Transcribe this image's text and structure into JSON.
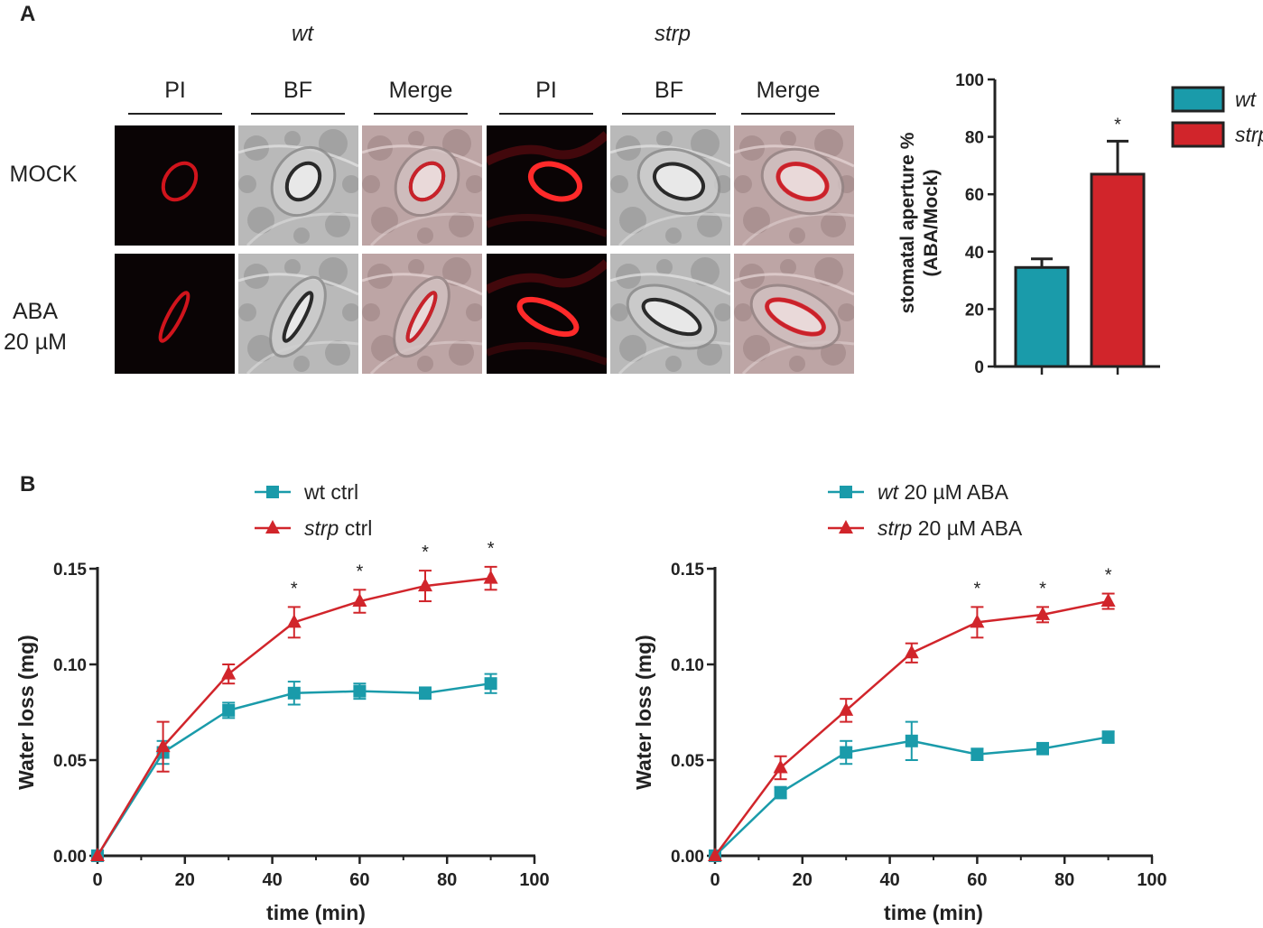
{
  "panel_labels": {
    "a": "A",
    "b": "B"
  },
  "microscopy": {
    "genotypes": [
      "wt",
      "strp"
    ],
    "channels": [
      "PI",
      "BF",
      "Merge"
    ],
    "row_labels": [
      "MOCK",
      "ABA\n20 µM"
    ],
    "image_names": [
      "propidium-iodide-image",
      "bright-field-image",
      "merged-image"
    ]
  },
  "colors": {
    "wt": "#1a9baa",
    "strp": "#d1252b",
    "axis": "#222222"
  },
  "chart_data": [
    {
      "id": "bar",
      "type": "bar",
      "categories": [
        "wt",
        "strp"
      ],
      "values": [
        34.5,
        67
      ],
      "errors": [
        3,
        11.5
      ],
      "significance": [
        "",
        "*"
      ],
      "ylabel_line1": "stomatal aperture %",
      "ylabel_line2": "(ABA/Mock)",
      "ylim": [
        0,
        100
      ],
      "yticks": [
        0,
        20,
        40,
        60,
        80,
        100
      ],
      "legend": [
        "wt",
        "strp"
      ],
      "legend_position": "top-right"
    },
    {
      "id": "ctrl",
      "type": "line",
      "x": [
        0,
        15,
        30,
        45,
        60,
        75,
        90
      ],
      "series": [
        {
          "name": "wt ctrl",
          "legend_prefix": "",
          "legend_suffix": "wt ctrl",
          "marker": "square",
          "values": [
            0,
            0.054,
            0.076,
            0.085,
            0.086,
            0.085,
            0.09
          ],
          "errors": [
            0,
            0.006,
            0.004,
            0.006,
            0.004,
            0.003,
            0.005
          ]
        },
        {
          "name": "strp ctrl",
          "legend_prefix": "strp",
          "legend_suffix": " ctrl",
          "marker": "triangle",
          "values": [
            0,
            0.057,
            0.095,
            0.122,
            0.133,
            0.141,
            0.145
          ],
          "errors": [
            0,
            0.013,
            0.005,
            0.008,
            0.006,
            0.008,
            0.006
          ]
        }
      ],
      "significance_x": [
        45,
        60,
        75,
        90
      ],
      "significance_label": "*",
      "xlabel": "time (min)",
      "ylabel": "Water loss  (mg)",
      "xlim": [
        0,
        100
      ],
      "ylim": [
        0,
        0.15
      ],
      "xticks": [
        0,
        20,
        40,
        60,
        80,
        100
      ],
      "yticks": [
        0,
        0.05,
        0.1,
        0.15
      ],
      "ytick_labels": [
        "0.00",
        "0.05",
        "0.10",
        "0.15"
      ],
      "legend_position": "top-left"
    },
    {
      "id": "aba",
      "type": "line",
      "x": [
        0,
        15,
        30,
        45,
        60,
        75,
        90
      ],
      "series": [
        {
          "name": "wt 20 µM ABA",
          "legend_prefix": "wt",
          "legend_suffix": " 20 µM ABA",
          "marker": "square",
          "values": [
            0,
            0.033,
            0.054,
            0.06,
            0.053,
            0.056,
            0.062
          ],
          "errors": [
            0,
            0.003,
            0.006,
            0.01,
            0.003,
            0.003,
            0.003
          ]
        },
        {
          "name": "strp 20 µM ABA",
          "legend_prefix": "strp",
          "legend_suffix": " 20 µM ABA",
          "marker": "triangle",
          "values": [
            0,
            0.046,
            0.076,
            0.106,
            0.122,
            0.126,
            0.133
          ],
          "errors": [
            0,
            0.006,
            0.006,
            0.005,
            0.008,
            0.004,
            0.004
          ]
        }
      ],
      "significance_x": [
        60,
        75,
        90
      ],
      "significance_label": "*",
      "xlabel": "time (min)",
      "ylabel": "Water loss  (mg)",
      "xlim": [
        0,
        100
      ],
      "ylim": [
        0,
        0.15
      ],
      "xticks": [
        0,
        20,
        40,
        60,
        80,
        100
      ],
      "yticks": [
        0,
        0.05,
        0.1,
        0.15
      ],
      "ytick_labels": [
        "0.00",
        "0.05",
        "0.10",
        "0.15"
      ],
      "legend_position": "top-center"
    }
  ]
}
